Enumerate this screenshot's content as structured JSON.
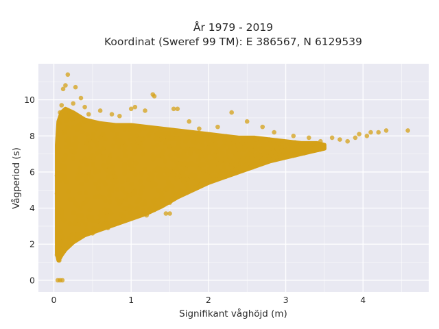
{
  "chart_data": {
    "type": "scatter",
    "title": "År 1979 - 2019",
    "subtitle": "Koordinat (Sweref 99 TM): E 386567, N 6129539",
    "xlabel": "Signifikant våghöjd (m)",
    "ylabel": "Vågperiod (s)",
    "xlim": [
      -0.2,
      4.85
    ],
    "ylim": [
      -0.65,
      12
    ],
    "x_ticks": [
      0,
      1,
      2,
      3,
      4
    ],
    "y_ticks": [
      0,
      2,
      4,
      6,
      8,
      10
    ],
    "x_tick_labels": [
      "0",
      "1",
      "2",
      "3",
      "4"
    ],
    "y_tick_labels": [
      "0",
      "2",
      "4",
      "6",
      "8",
      "10"
    ],
    "grid": true,
    "legend": "none",
    "colors": {
      "marker": "#d4a017",
      "plot_background": "#e9e9f2",
      "grid": "#ffffff"
    },
    "series": [
      {
        "points": [
          [
            0.05,
            0
          ],
          [
            0.08,
            0
          ],
          [
            0.11,
            0
          ],
          [
            0.04,
            1.4
          ],
          [
            0.07,
            1.1
          ],
          [
            0.1,
            1.6
          ],
          [
            0.05,
            2.5
          ],
          [
            0.05,
            3.5
          ],
          [
            0.04,
            4.8
          ],
          [
            0.04,
            5.8
          ],
          [
            0.05,
            6.6
          ],
          [
            0.06,
            7.3
          ],
          [
            0.07,
            8.7
          ],
          [
            0.08,
            9.3
          ],
          [
            0.1,
            9.7
          ],
          [
            0.12,
            10.6
          ],
          [
            0.15,
            10.8
          ],
          [
            0.18,
            11.4
          ],
          [
            0.2,
            9.1
          ],
          [
            0.25,
            9.8
          ],
          [
            0.28,
            10.7
          ],
          [
            0.35,
            10.1
          ],
          [
            0.4,
            9.6
          ],
          [
            0.45,
            9.2
          ],
          [
            0.5,
            8.6
          ],
          [
            0.55,
            8.4
          ],
          [
            0.6,
            9.4
          ],
          [
            0.75,
            9.2
          ],
          [
            0.85,
            9.1
          ],
          [
            1.0,
            9.5
          ],
          [
            1.05,
            9.6
          ],
          [
            1.18,
            9.4
          ],
          [
            1.28,
            10.3
          ],
          [
            1.3,
            10.2
          ],
          [
            1.55,
            9.5
          ],
          [
            1.6,
            9.5
          ],
          [
            1.75,
            8.8
          ],
          [
            1.88,
            8.4
          ],
          [
            2.12,
            8.5
          ],
          [
            2.3,
            9.3
          ],
          [
            2.5,
            8.8
          ],
          [
            2.7,
            8.5
          ],
          [
            2.85,
            8.2
          ],
          [
            3.1,
            8.0
          ],
          [
            3.3,
            7.9
          ],
          [
            3.45,
            7.7
          ],
          [
            3.6,
            7.9
          ],
          [
            3.7,
            7.8
          ],
          [
            3.8,
            7.7
          ],
          [
            3.9,
            7.9
          ],
          [
            4.05,
            8.0
          ],
          [
            4.2,
            8.2
          ],
          [
            4.3,
            8.3
          ],
          [
            4.58,
            8.3
          ],
          [
            3.95,
            8.1
          ],
          [
            4.1,
            8.2
          ],
          [
            0.15,
            1.8
          ],
          [
            0.3,
            2.3
          ],
          [
            0.5,
            2.6
          ],
          [
            0.7,
            2.9
          ],
          [
            0.9,
            3.3
          ],
          [
            1.1,
            3.6
          ],
          [
            1.3,
            3.9
          ],
          [
            1.5,
            4.3
          ],
          [
            1.7,
            4.9
          ],
          [
            1.9,
            5.3
          ],
          [
            2.1,
            5.6
          ],
          [
            2.3,
            5.9
          ],
          [
            2.5,
            6.2
          ],
          [
            2.8,
            6.7
          ],
          [
            3.0,
            6.9
          ],
          [
            3.2,
            7.1
          ],
          [
            3.4,
            7.3
          ],
          [
            1.2,
            3.6
          ],
          [
            1.45,
            3.7
          ],
          [
            1.5,
            3.7
          ]
        ],
        "density_band": {
          "description": "dense cloud of observations",
          "x": [
            0.04,
            0.06,
            0.1,
            0.15,
            0.25,
            0.4,
            0.6,
            0.8,
            1.0,
            1.2,
            1.4,
            1.6,
            1.8,
            2.0,
            2.2,
            2.4,
            2.6,
            2.8,
            3.0,
            3.2,
            3.4,
            3.5
          ],
          "y_low": [
            1.5,
            1.1,
            1.4,
            1.7,
            2.1,
            2.5,
            2.8,
            3.1,
            3.4,
            3.7,
            4.1,
            4.6,
            5.0,
            5.4,
            5.7,
            6.0,
            6.3,
            6.6,
            6.8,
            7.0,
            7.2,
            7.3
          ],
          "y_high": [
            7.5,
            8.8,
            9.3,
            9.5,
            9.3,
            8.9,
            8.7,
            8.6,
            8.6,
            8.5,
            8.4,
            8.3,
            8.2,
            8.1,
            8.0,
            7.9,
            7.9,
            7.8,
            7.7,
            7.6,
            7.6,
            7.5
          ]
        }
      }
    ]
  }
}
